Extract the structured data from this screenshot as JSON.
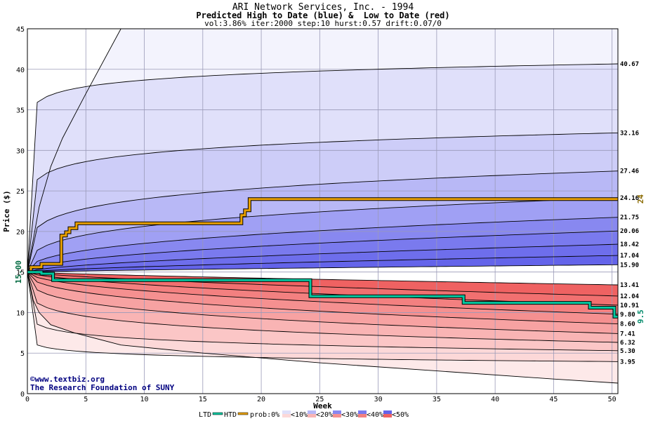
{
  "chart_data": {
    "type": "area",
    "title": "ARI Network Services, Inc. - 1994",
    "subtitle": "Predicted High to Date (blue) &  Low to Date (red)",
    "params": "vol:3.86% iter:2000 step:10 hurst:0.57 drift:0.07/0",
    "xlabel": "Week",
    "ylabel": "Price ($)",
    "xlim": [
      0,
      50.5
    ],
    "ylim": [
      0,
      45
    ],
    "xticks": [
      0,
      5,
      10,
      15,
      20,
      25,
      30,
      35,
      40,
      45,
      50
    ],
    "yticks": [
      0,
      5,
      10,
      15,
      20,
      25,
      30,
      35,
      40,
      45
    ],
    "grid": true,
    "start_price": 15.0,
    "start_price_label": "15.00",
    "high_quantiles": [
      {
        "label": "40.67",
        "end": 40.67,
        "p": 0.05
      },
      {
        "label": "32.16",
        "end": 32.16,
        "p": 0.1
      },
      {
        "label": "27.46",
        "end": 27.46,
        "p": 0.2
      },
      {
        "label": "24.16",
        "end": 24.16,
        "p": 0.3
      },
      {
        "label": "21.75",
        "end": 21.75,
        "p": 0.4
      },
      {
        "label": "20.06",
        "end": 20.06,
        "p": 0.5
      },
      {
        "label": "18.42",
        "end": 18.42,
        "p": 0.6
      },
      {
        "label": "17.04",
        "end": 17.04,
        "p": 0.7
      },
      {
        "label": "15.90",
        "end": 15.9,
        "p": 0.8
      }
    ],
    "low_quantiles": [
      {
        "label": "13.41",
        "end": 13.41,
        "p": 0.8
      },
      {
        "label": "12.04",
        "end": 12.04,
        "p": 0.7
      },
      {
        "label": "10.91",
        "end": 10.91,
        "p": 0.6
      },
      {
        "label": "9.80",
        "end": 9.8,
        "p": 0.5
      },
      {
        "label": "8.60",
        "end": 8.6,
        "p": 0.4
      },
      {
        "label": "7.41",
        "end": 7.41,
        "p": 0.3
      },
      {
        "label": "6.32",
        "end": 6.32,
        "p": 0.2
      },
      {
        "label": "5.30",
        "end": 5.3,
        "p": 0.1
      },
      {
        "label": "3.95",
        "end": 3.95,
        "p": 0.05
      }
    ],
    "outer_high": {
      "x": [
        0,
        1,
        2,
        3,
        5,
        8
      ],
      "y": [
        15,
        23,
        28,
        31.5,
        37,
        45
      ]
    },
    "outer_low": {
      "x": [
        0,
        0.5,
        1,
        2,
        4,
        8,
        15,
        25,
        35,
        45,
        50.5
      ],
      "y": [
        15,
        11.5,
        10,
        8.5,
        7.5,
        6,
        5,
        3.8,
        2.8,
        1.8,
        1.3
      ]
    },
    "series": [
      {
        "name": "HTD",
        "color": "#e8a000",
        "x": [
          0,
          0.3,
          0.3,
          1.2,
          1.2,
          2.9,
          2.9,
          3.3,
          3.3,
          3.6,
          3.6,
          4.2,
          4.2,
          18.3,
          18.3,
          18.6,
          18.6,
          19.0,
          19.0,
          50.5
        ],
        "y": [
          15,
          15,
          15.6,
          15.6,
          16.0,
          16.0,
          19.5,
          19.5,
          19.9,
          19.9,
          20.4,
          20.4,
          21.0,
          21.0,
          22.0,
          22.0,
          22.6,
          22.6,
          24.0,
          24.0
        ]
      },
      {
        "name": "LTD",
        "color": "#00c8a0",
        "x": [
          0,
          1.2,
          1.2,
          2.2,
          2.2,
          24.2,
          24.2,
          37.3,
          37.3,
          48.1,
          48.1,
          50.2,
          50.2,
          50.5
        ],
        "y": [
          15,
          15,
          14.8,
          14.8,
          14.0,
          14.0,
          12.0,
          12.0,
          11.2,
          11.2,
          10.6,
          10.6,
          9.5,
          9.5
        ]
      }
    ],
    "last_high": "24",
    "last_low": "9.5",
    "legend": {
      "placement": "bottom",
      "ltd": "LTD",
      "htd": "HTD",
      "prob_label": "prob:0%",
      "bins": [
        "<10%",
        "<20%",
        "<30%",
        "<40%",
        "<50%"
      ]
    },
    "watermark": [
      "©www.textbiz.org",
      "The Research Foundation of SUNY"
    ],
    "colors": {
      "blue": [
        "#f3f3fd",
        "#e0e0fa",
        "#cdcdf8",
        "#b8b8f6",
        "#a0a0f4",
        "#8888f0",
        "#7a7aee",
        "#6e6eec",
        "#6464ea"
      ],
      "red": [
        "#fde9e9",
        "#fcd8d8",
        "#fbc6c6",
        "#f9b4b4",
        "#f7a2a2",
        "#f59090",
        "#f38080",
        "#f17070",
        "#ef6262"
      ],
      "htd": "#e8a000",
      "ltd": "#00c8a0",
      "high_label": "#8a6a00",
      "low_label": "#008a6a",
      "start_label": "#006a40",
      "watermark": "#000080"
    }
  }
}
